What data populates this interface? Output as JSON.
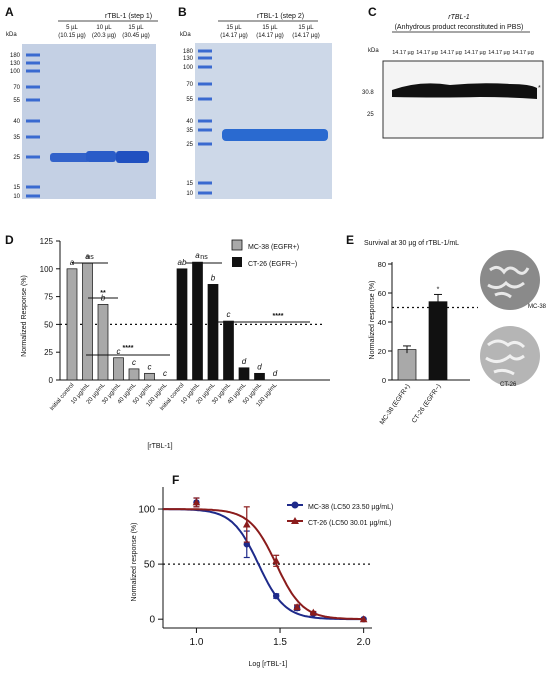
{
  "panels": {
    "A": {
      "label": "A",
      "title": "rTBL-1 (step 1)",
      "unit": "kDa",
      "ladder": [
        "180",
        "130",
        "100",
        "70",
        "55",
        "40",
        "35",
        "25",
        "15",
        "10"
      ],
      "lanes": [
        {
          "vol": "5 µL",
          "mass": "(10.15 µg)"
        },
        {
          "vol": "10 µL",
          "mass": "(20.3 µg)"
        },
        {
          "vol": "15 µL",
          "mass": "(30.45 µg)"
        }
      ]
    },
    "B": {
      "label": "B",
      "title": "rTBL-1 (step 2)",
      "unit": "kDa",
      "ladder": [
        "180",
        "130",
        "100",
        "70",
        "55",
        "40",
        "35",
        "25",
        "15",
        "10"
      ],
      "lanes": [
        {
          "vol": "15 µL",
          "mass": "(14.17 µg)"
        },
        {
          "vol": "15 µL",
          "mass": "(14.17 µg)"
        },
        {
          "vol": "15 µL",
          "mass": "(14.17 µg)"
        }
      ]
    },
    "C": {
      "label": "C",
      "title": "rTBL-1",
      "subtitle": "(Anhydrous product reconstituted in PBS)",
      "unit": "kDa",
      "lane_label": "14.17 µg",
      "lane_count": 6,
      "markers": [
        "30.8",
        "25"
      ],
      "asterisk": "*"
    },
    "D": {
      "label": "D",
      "ylabel": "Normalized Response (%)",
      "xlabel": "[rTBL-1]",
      "yticks": [
        "0",
        "25",
        "50",
        "75",
        "100",
        "125"
      ],
      "legend": [
        "MC-38 (EGFR+)",
        "CT-26 (EGFR−)"
      ],
      "sig": {
        "ns": "ns",
        "two_star": "**",
        "four_star": "****"
      }
    },
    "E": {
      "label": "E",
      "title": "Survival at 30 µg of rTBL-1/mL",
      "ylabel": "Normalized response (%)",
      "yticks": [
        "0",
        "20",
        "40",
        "60",
        "80"
      ],
      "star": "*",
      "images": [
        "MC-38",
        "CT-26"
      ]
    },
    "F": {
      "label": "F",
      "ylabel": "Normalized response (%)",
      "xlabel": "Log [rTBL-1]",
      "yticks": [
        "0",
        "50",
        "100"
      ],
      "xticks": [
        "1.0",
        "1.5",
        "2.0"
      ],
      "legend": [
        "MC-38 (LC50 23.50 µg/mL)",
        "CT-26 (LC50 30.01 µg/mL)"
      ]
    }
  },
  "colors": {
    "mc38": "#1e2a8a",
    "ct26": "#8b1c1c",
    "gel_bg": "#c4d0e4",
    "band": "#2a5cc8",
    "ladder": "#3a6ad0"
  },
  "chart_data": [
    {
      "panel": "D",
      "type": "bar",
      "categories": [
        "Initial control",
        "10 µg/mL",
        "20 µg/mL",
        "30 µg/mL",
        "40 µg/mL",
        "50 µg/mL",
        "100 µg/mL"
      ],
      "series": [
        {
          "name": "MC-38 (EGFR+)",
          "values": [
            100,
            105,
            68,
            20,
            10,
            6,
            0
          ],
          "letters": [
            "a",
            "a",
            "b",
            "c",
            "c",
            "c",
            "c"
          ]
        },
        {
          "name": "CT-26 (EGFR−)",
          "values": [
            100,
            106,
            86,
            53,
            11,
            6,
            0
          ],
          "letters": [
            "ab",
            "a",
            "b",
            "c",
            "d",
            "d",
            "d"
          ]
        }
      ],
      "ylim": [
        0,
        125
      ],
      "reference_line": 50
    },
    {
      "panel": "E",
      "type": "bar",
      "categories": [
        "MC-38 (EGFR+)",
        "CT-26 (EGFR−)"
      ],
      "values": [
        21,
        54
      ],
      "errors": [
        2.5,
        5
      ],
      "ylim": [
        0,
        80
      ],
      "reference_line": 50
    },
    {
      "panel": "F",
      "type": "line",
      "xlim": [
        0.8,
        2.05
      ],
      "ylim": [
        -8,
        120
      ],
      "reference_line": 50,
      "series": [
        {
          "name": "MC-38 (LC50 23.50 µg/mL)",
          "logLC50": 1.371,
          "x": [
            1.0,
            1.301,
            1.477,
            1.602,
            1.699,
            2.0
          ],
          "y": [
            106,
            68,
            21,
            10,
            5,
            0
          ],
          "err": [
            4,
            12,
            2,
            2,
            1,
            0
          ]
        },
        {
          "name": "CT-26 (LC50 30.01 µg/mL)",
          "logLC50": 1.477,
          "x": [
            1.0,
            1.301,
            1.477,
            1.602,
            1.699,
            2.0
          ],
          "y": [
            106,
            86,
            53,
            11,
            6,
            0
          ],
          "err": [
            4,
            16,
            5,
            2,
            1,
            0
          ]
        }
      ]
    }
  ]
}
